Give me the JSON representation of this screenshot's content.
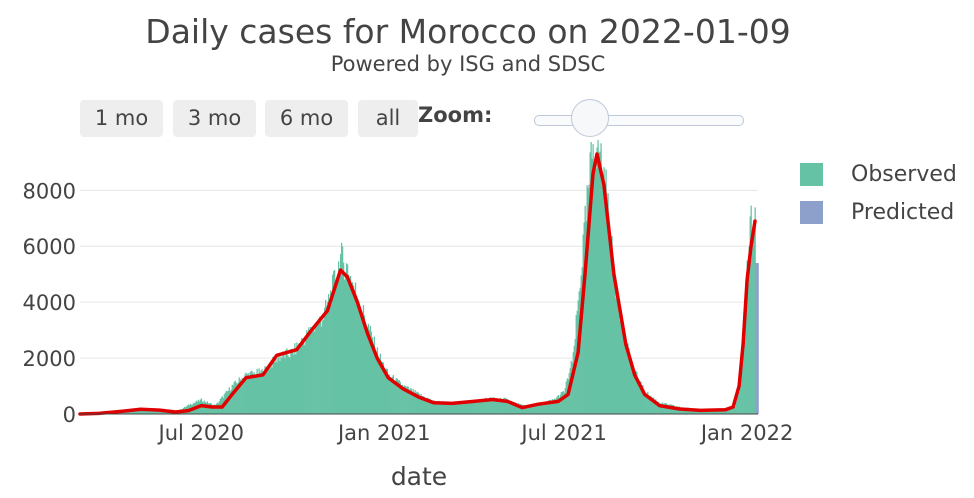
{
  "header": {
    "title": "Daily cases for Morocco on 2022-01-09",
    "subtitle": "Powered by ISG and SDSC"
  },
  "controls": {
    "range_buttons": [
      "1 mo",
      "3 mo",
      "6 mo",
      "all"
    ],
    "zoom_label": "Zoom:"
  },
  "colors": {
    "observed": "#66c2a5",
    "predicted": "#8da0cb",
    "smoothed_line": "#e00000",
    "grid": "#e6e6e6"
  },
  "chart_data": {
    "type": "bar",
    "title": "Daily cases for Morocco on 2022-01-09",
    "subtitle": "Powered by ISG and SDSC",
    "xlabel": "date",
    "ylabel": "",
    "x_range": [
      "2020-03-01",
      "2022-01-12"
    ],
    "ylim": [
      0,
      9800
    ],
    "yticks": [
      0,
      2000,
      4000,
      6000,
      8000
    ],
    "xticks": [
      {
        "date": "2020-07-01",
        "label": "Jul 2020"
      },
      {
        "date": "2021-01-01",
        "label": "Jan 2021"
      },
      {
        "date": "2021-07-01",
        "label": "Jul 2021"
      },
      {
        "date": "2022-01-01",
        "label": "Jan 2022"
      }
    ],
    "grid": true,
    "legend": {
      "placement": "right",
      "entries": [
        "Observed",
        "Predicted"
      ]
    },
    "observed_trend": [
      [
        "2020-03-01",
        0
      ],
      [
        "2020-03-20",
        20
      ],
      [
        "2020-04-10",
        100
      ],
      [
        "2020-05-01",
        180
      ],
      [
        "2020-05-20",
        120
      ],
      [
        "2020-06-05",
        60
      ],
      [
        "2020-06-20",
        350
      ],
      [
        "2020-07-01",
        500
      ],
      [
        "2020-07-15",
        300
      ],
      [
        "2020-08-01",
        1000
      ],
      [
        "2020-08-15",
        1400
      ],
      [
        "2020-09-01",
        1500
      ],
      [
        "2020-09-15",
        2000
      ],
      [
        "2020-10-01",
        2200
      ],
      [
        "2020-10-15",
        2800
      ],
      [
        "2020-11-01",
        3500
      ],
      [
        "2020-11-10",
        4500
      ],
      [
        "2020-11-18",
        5600
      ],
      [
        "2020-11-25",
        5200
      ],
      [
        "2020-12-05",
        4200
      ],
      [
        "2020-12-15",
        3200
      ],
      [
        "2020-12-25",
        2200
      ],
      [
        "2021-01-05",
        1400
      ],
      [
        "2021-01-20",
        1000
      ],
      [
        "2021-02-05",
        700
      ],
      [
        "2021-02-20",
        450
      ],
      [
        "2021-03-10",
        400
      ],
      [
        "2021-04-01",
        450
      ],
      [
        "2021-04-15",
        550
      ],
      [
        "2021-05-01",
        550
      ],
      [
        "2021-05-20",
        300
      ],
      [
        "2021-06-05",
        350
      ],
      [
        "2021-06-20",
        500
      ],
      [
        "2021-07-01",
        800
      ],
      [
        "2021-07-10",
        2000
      ],
      [
        "2021-07-20",
        6000
      ],
      [
        "2021-07-30",
        9700
      ],
      [
        "2021-08-05",
        9600
      ],
      [
        "2021-08-12",
        8000
      ],
      [
        "2021-08-20",
        5000
      ],
      [
        "2021-09-01",
        2500
      ],
      [
        "2021-09-10",
        1500
      ],
      [
        "2021-09-20",
        800
      ],
      [
        "2021-10-05",
        400
      ],
      [
        "2021-10-25",
        250
      ],
      [
        "2021-11-15",
        150
      ],
      [
        "2021-12-10",
        150
      ],
      [
        "2021-12-20",
        250
      ],
      [
        "2021-12-25",
        1000
      ],
      [
        "2021-12-28",
        2800
      ],
      [
        "2022-01-01",
        5000
      ],
      [
        "2022-01-03",
        6000
      ],
      [
        "2022-01-05",
        7000
      ],
      [
        "2022-01-07",
        6600
      ],
      [
        "2022-01-09",
        7400
      ]
    ],
    "predicted": [
      [
        "2022-01-10",
        5400
      ],
      [
        "2022-01-11",
        5400
      ],
      [
        "2022-01-12",
        5400
      ]
    ],
    "smoothed": [
      [
        "2020-03-01",
        0
      ],
      [
        "2020-03-20",
        20
      ],
      [
        "2020-04-10",
        90
      ],
      [
        "2020-05-01",
        170
      ],
      [
        "2020-05-20",
        140
      ],
      [
        "2020-06-05",
        70
      ],
      [
        "2020-06-18",
        120
      ],
      [
        "2020-07-01",
        300
      ],
      [
        "2020-07-12",
        250
      ],
      [
        "2020-07-22",
        250
      ],
      [
        "2020-08-01",
        700
      ],
      [
        "2020-08-15",
        1300
      ],
      [
        "2020-09-01",
        1400
      ],
      [
        "2020-09-15",
        2100
      ],
      [
        "2020-10-05",
        2300
      ],
      [
        "2020-10-20",
        3000
      ],
      [
        "2020-11-05",
        3700
      ],
      [
        "2020-11-18",
        5150
      ],
      [
        "2020-11-25",
        4900
      ],
      [
        "2020-12-05",
        4000
      ],
      [
        "2020-12-15",
        2900
      ],
      [
        "2020-12-25",
        2000
      ],
      [
        "2021-01-05",
        1300
      ],
      [
        "2021-01-20",
        900
      ],
      [
        "2021-02-05",
        600
      ],
      [
        "2021-02-20",
        400
      ],
      [
        "2021-03-10",
        380
      ],
      [
        "2021-04-01",
        450
      ],
      [
        "2021-04-20",
        520
      ],
      [
        "2021-05-05",
        450
      ],
      [
        "2021-05-20",
        230
      ],
      [
        "2021-06-05",
        350
      ],
      [
        "2021-06-25",
        450
      ],
      [
        "2021-07-05",
        700
      ],
      [
        "2021-07-15",
        2200
      ],
      [
        "2021-07-22",
        5000
      ],
      [
        "2021-07-30",
        8600
      ],
      [
        "2021-08-03",
        9300
      ],
      [
        "2021-08-10",
        8200
      ],
      [
        "2021-08-20",
        5000
      ],
      [
        "2021-09-01",
        2500
      ],
      [
        "2021-09-10",
        1400
      ],
      [
        "2021-09-20",
        700
      ],
      [
        "2021-10-05",
        300
      ],
      [
        "2021-10-25",
        180
      ],
      [
        "2021-11-15",
        130
      ],
      [
        "2021-12-10",
        150
      ],
      [
        "2021-12-18",
        250
      ],
      [
        "2021-12-24",
        1000
      ],
      [
        "2021-12-28",
        2500
      ],
      [
        "2022-01-01",
        4800
      ],
      [
        "2022-01-05",
        6000
      ],
      [
        "2022-01-09",
        6900
      ]
    ]
  }
}
